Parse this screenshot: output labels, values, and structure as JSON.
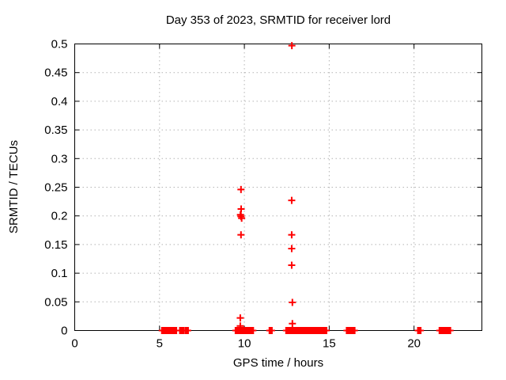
{
  "page": {
    "title": "Day 353 of 2023, SRMTID for receiver lord"
  },
  "colors": {
    "marker": "#ff0000",
    "grid": "#b4b4b4",
    "axis": "#000000",
    "background": "#ffffff",
    "text": "#000000"
  },
  "chart_data": {
    "type": "scatter",
    "title": "Day 353 of 2023, SRMTID for receiver lord",
    "xlabel": "GPS time / hours",
    "ylabel": "SRMTID / TECUs",
    "xlim": [
      0,
      24
    ],
    "ylim": [
      0,
      0.5
    ],
    "xticks": [
      0,
      5,
      10,
      15,
      20
    ],
    "yticks": [
      0,
      0.05,
      0.1,
      0.15,
      0.2,
      0.25,
      0.3,
      0.35,
      0.4,
      0.45,
      0.5
    ],
    "grid": true,
    "legend": "none",
    "marker": {
      "shape": "plus",
      "size": 9,
      "stroke_width": 2,
      "color": "#ff0000"
    },
    "series": [
      {
        "name": "SRMTID",
        "points": [
          [
            9.8,
            0.246
          ],
          [
            9.81,
            0.212
          ],
          [
            9.77,
            0.202
          ],
          [
            9.8,
            0.199
          ],
          [
            9.84,
            0.196
          ],
          [
            9.8,
            0.167
          ],
          [
            9.76,
            0.022
          ],
          [
            9.76,
            0.008
          ],
          [
            12.8,
            0.497
          ],
          [
            12.79,
            0.227
          ],
          [
            12.79,
            0.167
          ],
          [
            12.79,
            0.143
          ],
          [
            12.79,
            0.114
          ],
          [
            12.83,
            0.049
          ],
          [
            12.83,
            0.012
          ]
        ]
      }
    ],
    "zero_level_runs": [
      [
        5.16,
        5.97
      ],
      [
        6.22,
        6.41
      ],
      [
        6.56,
        6.66
      ],
      [
        9.5,
        10.5
      ],
      [
        11.5,
        11.6
      ],
      [
        12.48,
        13.58
      ],
      [
        13.68,
        14.82
      ],
      [
        16.05,
        16.48
      ],
      [
        20.25,
        20.37
      ],
      [
        21.52,
        22.12
      ]
    ]
  }
}
